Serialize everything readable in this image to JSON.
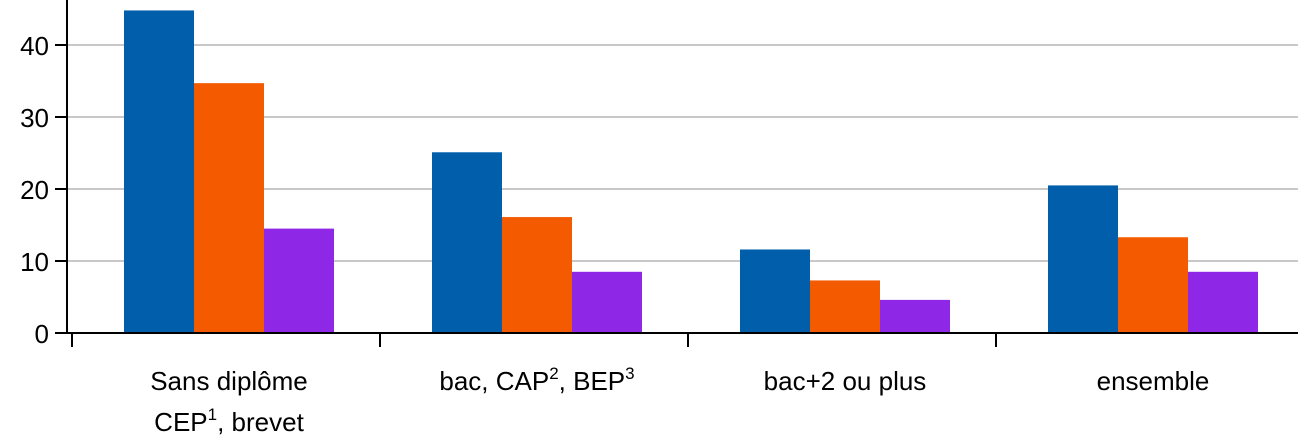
{
  "chart_data": {
    "type": "bar",
    "categories": [
      {
        "lines": [
          [
            {
              "t": "Sans diplôme"
            }
          ],
          [
            {
              "t": "CEP"
            },
            {
              "t": "1",
              "sup": true
            },
            {
              "t": ", brevet"
            }
          ]
        ]
      },
      {
        "lines": [
          [
            {
              "t": "bac, CAP"
            },
            {
              "t": "2",
              "sup": true
            },
            {
              "t": ", BEP"
            },
            {
              "t": "3",
              "sup": true
            }
          ]
        ]
      },
      {
        "lines": [
          [
            {
              "t": "bac+2 ou plus"
            }
          ]
        ]
      },
      {
        "lines": [
          [
            {
              "t": "ensemble"
            }
          ]
        ]
      }
    ],
    "series": [
      {
        "values": [
          44.8,
          25.1,
          11.6,
          20.5
        ],
        "color": "#005EAA"
      },
      {
        "values": [
          34.7,
          16.1,
          7.3,
          13.3
        ],
        "color": "#F45A00"
      },
      {
        "values": [
          14.5,
          8.5,
          4.6,
          8.5
        ],
        "color": "#8F27E6"
      }
    ],
    "yticks": [
      0,
      10,
      20,
      30,
      40
    ],
    "ylim": [
      0,
      44.8
    ],
    "grid": true,
    "xlabel": "",
    "ylabel": ""
  }
}
